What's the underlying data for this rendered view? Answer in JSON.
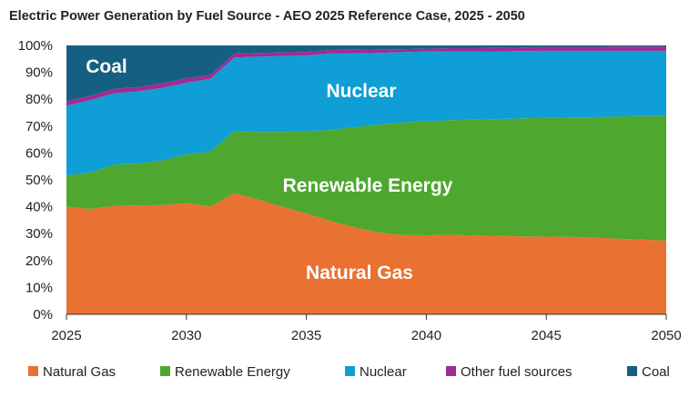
{
  "chart_data": {
    "type": "area",
    "stacked": "percent",
    "title": "Electric Power Generation by Fuel Source - AEO 2025 Reference Case, 2025 - 2050",
    "xlabel": "",
    "ylabel": "",
    "xlim": [
      2025,
      2050
    ],
    "ylim": [
      0,
      100
    ],
    "x_ticks": [
      "2025",
      "2030",
      "2035",
      "2040",
      "2045",
      "2050"
    ],
    "y_ticks": [
      "0%",
      "10%",
      "20%",
      "30%",
      "40%",
      "50%",
      "60%",
      "70%",
      "80%",
      "90%",
      "100%"
    ],
    "grid": false,
    "legend_position": "bottom",
    "x": [
      2025,
      2026,
      2027,
      2028,
      2029,
      2030,
      2031,
      2032,
      2033,
      2034,
      2035,
      2036,
      2037,
      2038,
      2039,
      2040,
      2041,
      2042,
      2043,
      2044,
      2045,
      2046,
      2047,
      2048,
      2049,
      2050
    ],
    "series": [
      {
        "name": "Natural Gas",
        "color": "#E97132",
        "label": "Natural Gas",
        "values": [
          40.0,
          39.2,
          40.3,
          40.5,
          40.6,
          41.4,
          40.1,
          45.0,
          42.6,
          40.0,
          37.5,
          34.7,
          32.4,
          30.4,
          29.5,
          29.4,
          29.6,
          29.3,
          29.2,
          29.0,
          28.9,
          28.8,
          28.5,
          28.1,
          27.8,
          27.4
        ]
      },
      {
        "name": "Renewable Energy",
        "color": "#4EA72E",
        "label": "Renewable Energy",
        "values": [
          11.6,
          13.5,
          15.4,
          15.6,
          16.6,
          18.1,
          20.4,
          23.1,
          25.2,
          27.8,
          30.7,
          33.8,
          37.2,
          40.1,
          41.8,
          42.4,
          42.6,
          43.1,
          43.4,
          43.9,
          44.1,
          44.4,
          44.8,
          45.5,
          45.9,
          46.4
        ]
      },
      {
        "name": "Nuclear",
        "color": "#0F9ED5",
        "label": "Nuclear",
        "values": [
          25.9,
          27.0,
          26.5,
          26.8,
          27.0,
          26.6,
          27.1,
          27.4,
          28.0,
          28.2,
          28.1,
          28.5,
          27.4,
          26.7,
          26.2,
          25.9,
          25.6,
          25.4,
          25.2,
          25.0,
          25.0,
          24.8,
          24.7,
          24.4,
          24.3,
          24.2
        ]
      },
      {
        "name": "Other fuel sources",
        "color": "#A02B93",
        "label": "",
        "values": [
          1.7,
          1.6,
          1.7,
          1.6,
          1.7,
          1.7,
          1.4,
          1.5,
          1.4,
          1.4,
          1.3,
          1.3,
          1.4,
          1.3,
          1.1,
          1.1,
          1.2,
          1.2,
          1.3,
          1.3,
          1.5,
          1.5,
          1.5,
          1.6,
          1.6,
          1.6
        ]
      },
      {
        "name": "Coal",
        "color": "#156082",
        "label": "Coal",
        "values": [
          20.8,
          18.7,
          16.1,
          15.5,
          14.1,
          12.2,
          11.0,
          3.0,
          2.8,
          2.6,
          2.4,
          1.7,
          1.6,
          1.5,
          1.4,
          1.2,
          1.0,
          1.0,
          0.9,
          0.8,
          0.5,
          0.5,
          0.5,
          0.4,
          0.4,
          0.4
        ]
      }
    ]
  }
}
